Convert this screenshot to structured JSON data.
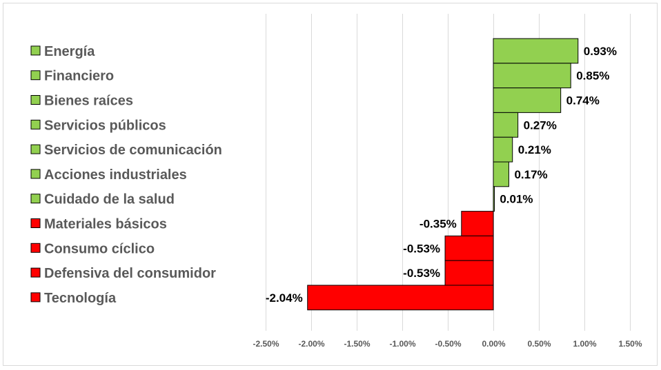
{
  "chart_data": {
    "type": "bar",
    "orientation": "horizontal",
    "categories": [
      "Energía",
      "Financiero",
      "Bienes raíces",
      "Servicios públicos",
      "Servicios de comunicación",
      "Acciones industriales",
      "Cuidado de la salud",
      "Materiales básicos",
      "Consumo cíclico",
      "Defensiva del consumidor",
      "Tecnología"
    ],
    "values": [
      0.93,
      0.85,
      0.74,
      0.27,
      0.21,
      0.17,
      0.01,
      -0.35,
      -0.53,
      -0.53,
      -2.04
    ],
    "value_labels": [
      "0.93%",
      "0.85%",
      "0.74%",
      "0.27%",
      "0.21%",
      "0.17%",
      "0.01%",
      "-0.35%",
      "-0.53%",
      "-0.53%",
      "-2.04%"
    ],
    "xlim": [
      -2.5,
      1.5
    ],
    "x_ticks": [
      -2.5,
      -2.0,
      -1.5,
      -1.0,
      -0.5,
      0.0,
      0.5,
      1.0,
      1.5
    ],
    "x_tick_labels": [
      "-2.50%",
      "-2.00%",
      "-1.50%",
      "-1.00%",
      "-0.50%",
      "0.00%",
      "0.50%",
      "1.00%",
      "1.50%"
    ],
    "positive_color": "#92d050",
    "negative_color": "#ff0000",
    "bar_border_color": "#000000",
    "gridlines": true,
    "legend_position": "left"
  }
}
